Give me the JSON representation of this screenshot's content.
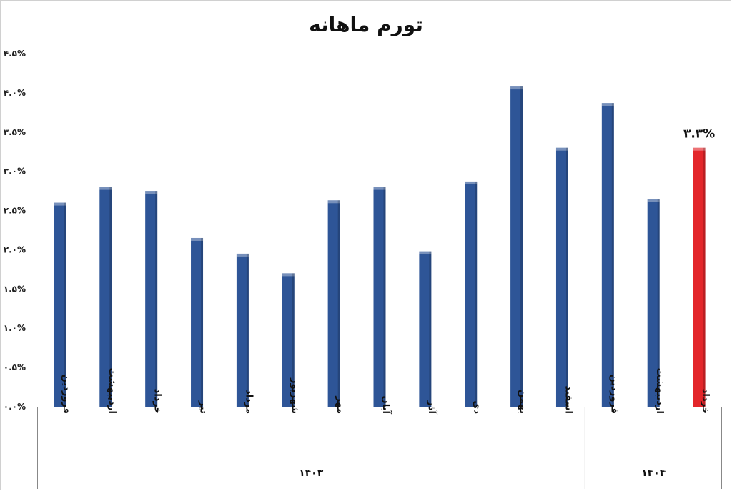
{
  "chart_data": {
    "type": "bar",
    "title": "تورم ماهانه",
    "xlabel": "",
    "ylabel": "",
    "ylim": [
      0,
      4.5
    ],
    "yticks": [
      "۰.۰%",
      "۰.۵%",
      "۱.۰%",
      "۱.۵%",
      "۲.۰%",
      "۲.۵%",
      "۳.۰%",
      "۳.۵%",
      "۴.۰%",
      "۴.۵%"
    ],
    "grid": false,
    "legend": "none",
    "categories": [
      "فروردین",
      "اردیبهشت",
      "خرداد",
      "تیر",
      "مرداد",
      "شهریور",
      "مهر",
      "آبان",
      "آذر",
      "دی",
      "بهمن",
      "اسفند",
      "فروردین",
      "اردیبهشت",
      "خرداد"
    ],
    "values": [
      2.6,
      2.8,
      2.75,
      2.15,
      1.95,
      1.7,
      2.63,
      2.8,
      1.98,
      2.87,
      4.08,
      3.3,
      3.87,
      2.65,
      3.3
    ],
    "groups": [
      {
        "label": "۱۴۰۳",
        "count": 12
      },
      {
        "label": "۱۴۰۴",
        "count": 3
      }
    ],
    "bar_color": "#2E5597",
    "highlight_color": "#E3262A",
    "highlight_index": 14,
    "data_labels": [
      {
        "index": 14,
        "text": "۳.۳%"
      }
    ]
  }
}
